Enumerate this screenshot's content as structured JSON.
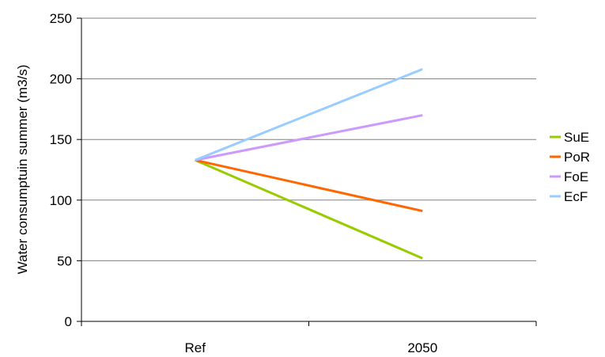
{
  "chart_data": {
    "type": "line",
    "title": "",
    "xlabel": "",
    "ylabel": "Water consumptuin summer (m3/s)",
    "categories": [
      "Ref",
      "2050"
    ],
    "ylim": [
      0,
      250
    ],
    "yticks": [
      0,
      50,
      100,
      150,
      200,
      250
    ],
    "grid": true,
    "legend_position": "right",
    "series": [
      {
        "name": "SuE",
        "color": "#99cc00",
        "values": [
          133,
          52
        ]
      },
      {
        "name": "PoR",
        "color": "#ff6600",
        "values": [
          133,
          91
        ]
      },
      {
        "name": "FoE",
        "color": "#cc99ff",
        "values": [
          133,
          170
        ]
      },
      {
        "name": "EcF",
        "color": "#99ccff",
        "values": [
          133,
          208
        ]
      }
    ]
  }
}
